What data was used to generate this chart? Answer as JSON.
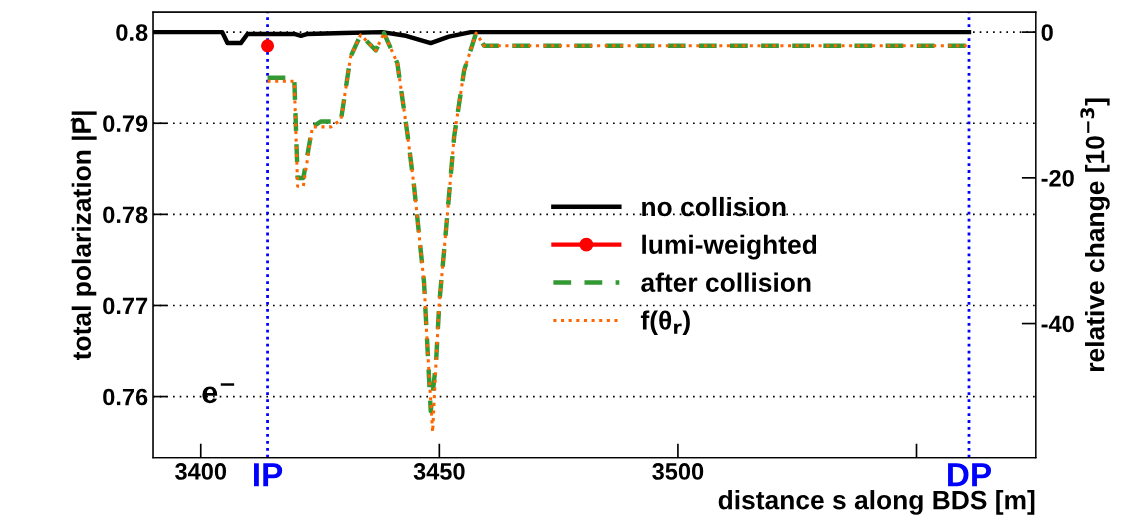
{
  "chart_data": {
    "type": "line",
    "xlabel": "distance s along BDS [m]",
    "ylabel": "total polarization |P⃗|",
    "y2label": "relative change [10$^{−3}$]",
    "xlim": [
      3390,
      3575
    ],
    "xticks": [
      3400,
      3450,
      3500,
      {
        "value": 3550,
        "label": null
      }
    ],
    "ylim": [
      0.7533,
      0.8022
    ],
    "yticks": [
      0.76,
      0.77,
      0.78,
      0.79,
      0.8
    ],
    "y2lim": [
      -58.4,
      2.75
    ],
    "y2ticks": [
      -40,
      -20,
      0
    ],
    "grid": "y",
    "legend": "center right",
    "series": [
      {
        "name": "no collision",
        "color": "#000000",
        "line_style": "solid",
        "x": [
          3390,
          3404.5,
          3405.6,
          3408.4,
          3409.8,
          3419.6,
          3421,
          3422.4,
          3430,
          3438,
          3443,
          3448.2,
          3452,
          3456.6,
          3561
        ],
        "values": [
          0.8,
          0.8,
          0.7988,
          0.7988,
          0.7998,
          0.7998,
          0.7996,
          0.7998,
          0.7999,
          0.8,
          0.7996,
          0.7988,
          0.7995,
          0.8,
          0.8
        ]
      },
      {
        "name": "lumi-weighted",
        "type": "scatter",
        "color": "#ff0000",
        "marker": "circle",
        "x": [
          3414
        ],
        "values": [
          0.7985
        ]
      },
      {
        "name": "after collision",
        "color": "#339933",
        "line_style": "dashed",
        "x": [
          3414,
          3419.6,
          3420.3,
          3421.5,
          3423.4,
          3425.2,
          3427.3,
          3429.4,
          3431.4,
          3433.5,
          3436.7,
          3438.4,
          3441.2,
          3443.3,
          3444.7,
          3446.8,
          3447.5,
          3448.2,
          3449.3,
          3450,
          3451.4,
          3453.1,
          3455.2,
          3457.7,
          3459.4,
          3561
        ],
        "values": [
          0.795,
          0.795,
          0.784,
          0.784,
          0.7896,
          0.7902,
          0.7902,
          0.7904,
          0.7973,
          0.7997,
          0.798,
          0.7999,
          0.7966,
          0.7889,
          0.7831,
          0.7725,
          0.7655,
          0.7584,
          0.7637,
          0.7703,
          0.7783,
          0.7885,
          0.7958,
          0.7999,
          0.7985,
          0.7985
        ]
      },
      {
        "name": "f(θ$_{r}$)",
        "color": "#ff6600",
        "line_style": "dotted",
        "x": [
          3414,
          3419.6,
          3420.3,
          3421.5,
          3423.4,
          3425.2,
          3427.3,
          3429.4,
          3431.4,
          3433.5,
          3436.7,
          3438.4,
          3441.2,
          3443.3,
          3444.7,
          3446.8,
          3447.5,
          3448.6,
          3449.3,
          3450,
          3451.4,
          3453.1,
          3455.2,
          3457.7,
          3459.4,
          3561
        ],
        "values": [
          0.7946,
          0.7946,
          0.7831,
          0.7831,
          0.7896,
          0.7896,
          0.7896,
          0.7904,
          0.7973,
          0.7997,
          0.798,
          0.7999,
          0.7966,
          0.7889,
          0.7831,
          0.7725,
          0.7655,
          0.7561,
          0.7637,
          0.7703,
          0.7783,
          0.7885,
          0.7958,
          0.7999,
          0.7985,
          0.7985
        ]
      }
    ],
    "ref_lines": [
      {
        "axis": "x",
        "value": 3414,
        "label": "IP",
        "color": "#0000ff",
        "line_style": "dotted"
      },
      {
        "axis": "x",
        "value": 3561,
        "label": "DP",
        "color": "#0000ff",
        "line_style": "dotted"
      }
    ],
    "annotations": [
      "e$^{−}$"
    ]
  }
}
